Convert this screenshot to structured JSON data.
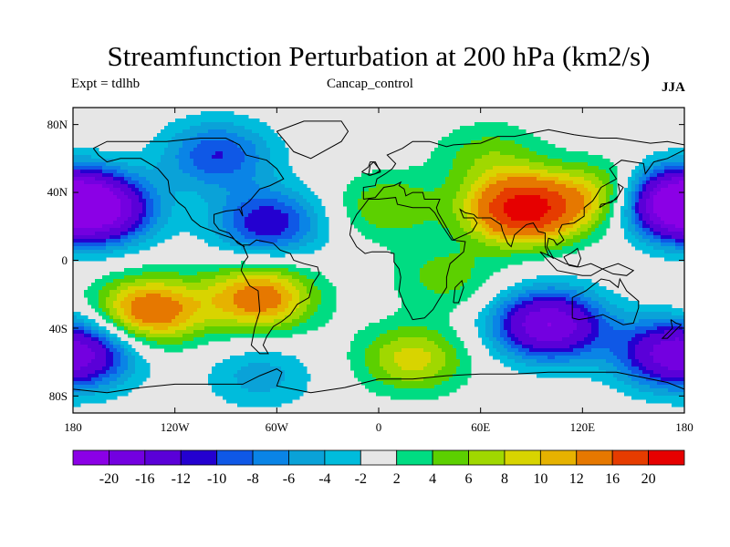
{
  "title": "Streamfunction Perturbation at 200 hPa (km2/s)",
  "left_label": "Expt = tdlhb",
  "center_label": "Cancap_control",
  "right_label": "JJA",
  "colors": {
    "missing": "#e6e6e6",
    "coast": "#000000",
    "palette": [
      "#8b00e6",
      "#7300e0",
      "#5a00d8",
      "#2400d0",
      "#0f58e6",
      "#0a84e6",
      "#0aa2d8",
      "#00bcdc",
      "#e6e6e6",
      "#00dc82",
      "#5cd000",
      "#a0d800",
      "#d8d400",
      "#e6b200",
      "#e67800",
      "#e63c00",
      "#e60000"
    ]
  },
  "lat_labels": [
    "80N",
    "40N",
    "0",
    "40S",
    "80S"
  ],
  "lon_labels": [
    "180",
    "120W",
    "60W",
    "0",
    "60E",
    "120E",
    "180"
  ],
  "colorbar_labels": [
    "-20",
    "-16",
    "-12",
    "-10",
    "-8",
    "-6",
    "-4",
    "-2",
    "2",
    "4",
    "6",
    "8",
    "10",
    "12",
    "16",
    "20"
  ],
  "chart_data": {
    "type": "heatmap",
    "title": "Streamfunction Perturbation at 200 hPa (km2/s)",
    "variable": "streamfunction perturbation",
    "level": "200 hPa",
    "units": "km2/s",
    "season": "JJA",
    "lon_range": [
      -180,
      180
    ],
    "lat_range": [
      -90,
      90
    ],
    "contour_levels": [
      -20,
      -16,
      -12,
      -10,
      -8,
      -6,
      -4,
      -2,
      2,
      4,
      6,
      8,
      10,
      12,
      16,
      20
    ],
    "features": [
      {
        "lon": 85,
        "lat": 30,
        "value": 22
      },
      {
        "lon": 5,
        "lat": 32,
        "value": 6
      },
      {
        "lon": 135,
        "lat": 38,
        "value": 10
      },
      {
        "lon": 65,
        "lat": 62,
        "value": 5
      },
      {
        "lon": -70,
        "lat": -22,
        "value": 14
      },
      {
        "lon": -135,
        "lat": -30,
        "value": 15
      },
      {
        "lon": 40,
        "lat": -10,
        "value": 5
      },
      {
        "lon": 20,
        "lat": -58,
        "value": 9
      },
      {
        "lon": 100,
        "lat": -38,
        "value": -20
      },
      {
        "lon": 170,
        "lat": 35,
        "value": -20
      },
      {
        "lon": -165,
        "lat": 30,
        "value": -19
      },
      {
        "lon": -95,
        "lat": 62,
        "value": -10
      },
      {
        "lon": -65,
        "lat": 22,
        "value": -12
      },
      {
        "lon": -170,
        "lat": -55,
        "value": -9
      },
      {
        "lon": 170,
        "lat": -55,
        "value": -13
      },
      {
        "lon": -70,
        "lat": -68,
        "value": -5
      }
    ]
  }
}
